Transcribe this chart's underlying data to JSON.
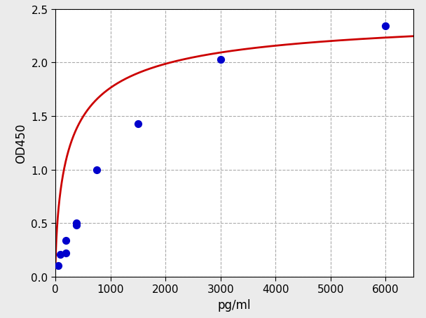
{
  "scatter_x": [
    47,
    94,
    188,
    188,
    375,
    375,
    750,
    1500,
    3000,
    6000
  ],
  "scatter_y": [
    0.1,
    0.21,
    0.22,
    0.34,
    0.48,
    0.5,
    1.0,
    1.43,
    2.03,
    2.34
  ],
  "scatter_color": "#0000cc",
  "scatter_size": 50,
  "curve_color": "#cc0000",
  "curve_linewidth": 2.0,
  "xlabel": "pg/ml",
  "ylabel": "OD450",
  "xlim": [
    0,
    6500
  ],
  "ylim": [
    0.0,
    2.5
  ],
  "xticks": [
    0,
    1000,
    2000,
    3000,
    4000,
    5000,
    6000
  ],
  "yticks": [
    0.0,
    0.5,
    1.0,
    1.5,
    2.0,
    2.5
  ],
  "grid_color": "#aaaaaa",
  "grid_linestyle": "--",
  "background_color": "#ebebeb",
  "plot_background": "#ffffff",
  "xlabel_fontsize": 12,
  "ylabel_fontsize": 12,
  "tick_fontsize": 11,
  "figsize": [
    6.08,
    4.56
  ],
  "dpi": 100
}
